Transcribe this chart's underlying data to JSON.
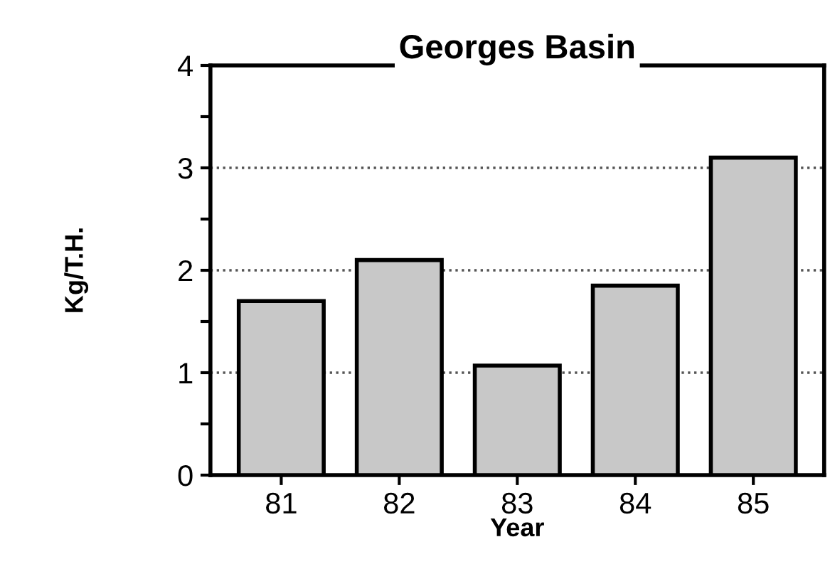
{
  "chart_data": {
    "type": "bar",
    "title": "Georges Basin",
    "xlabel": "Year",
    "ylabel": "Kg/T.H.",
    "categories": [
      "81",
      "82",
      "83",
      "84",
      "85"
    ],
    "values": [
      1.7,
      2.1,
      1.07,
      1.85,
      3.1
    ],
    "color": "#c8c8c8",
    "ylim": [
      0,
      4
    ],
    "yticks": [
      0,
      {
        "value": 0.5,
        "label": null
      },
      1,
      {
        "value": 1.5,
        "label": null
      },
      2,
      {
        "value": 2.5,
        "label": null
      },
      3,
      {
        "value": 3.5,
        "label": null
      },
      4
    ],
    "grid": "y"
  }
}
